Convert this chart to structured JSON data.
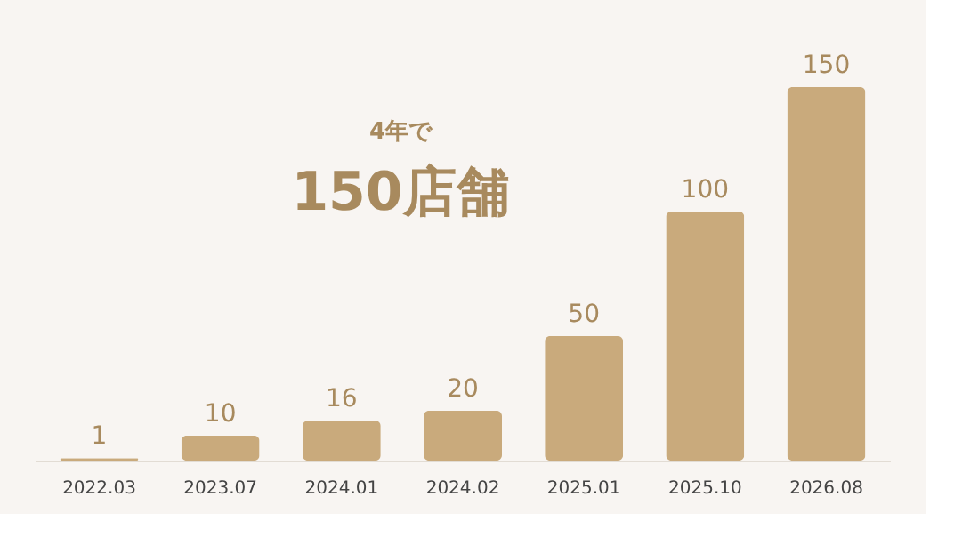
{
  "chart_data": {
    "type": "bar",
    "categories": [
      "2022.03",
      "2023.07",
      "2024.01",
      "2024.02",
      "2025.01",
      "2025.10",
      "2026.08"
    ],
    "values": [
      1,
      10,
      16,
      20,
      50,
      100,
      150
    ],
    "color": "#c9aa7c",
    "data_labels": true,
    "grid": false,
    "annotations": [
      "4年で",
      "150店舗"
    ]
  }
}
